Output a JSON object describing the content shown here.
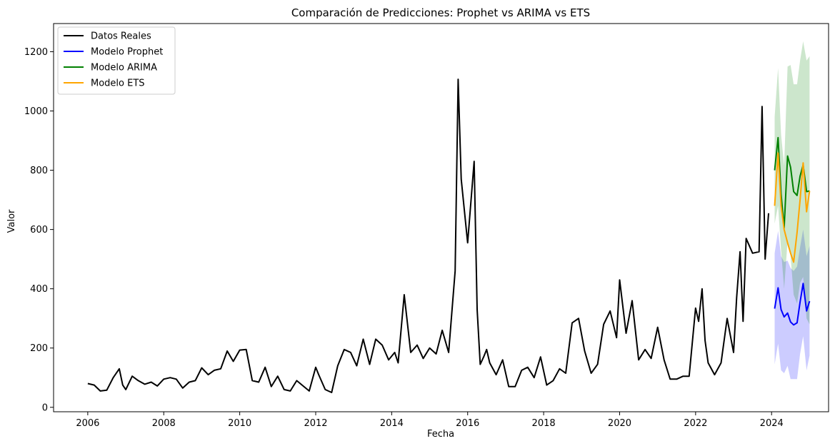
{
  "chart_data": {
    "type": "line",
    "title": "Comparación de Predicciones: Prophet vs ARIMA vs ETS",
    "xlabel": "Fecha",
    "ylabel": "Valor",
    "xlim": [
      2005.1,
      2025.5
    ],
    "ylim": [
      -15,
      1295
    ],
    "x_ticks": [
      2006,
      2008,
      2010,
      2012,
      2014,
      2016,
      2018,
      2020,
      2022,
      2024
    ],
    "x_tick_labels": [
      "2006",
      "2008",
      "2010",
      "2012",
      "2014",
      "2016",
      "2018",
      "2020",
      "2022",
      "2024"
    ],
    "y_ticks": [
      0,
      200,
      400,
      600,
      800,
      1000,
      1200
    ],
    "y_tick_labels": [
      "0",
      "200",
      "400",
      "600",
      "800",
      "1000",
      "1200"
    ],
    "grid": false,
    "legend_position": "top-left",
    "series": [
      {
        "name": "Datos Reales",
        "color": "#000000",
        "x": [
          2006.0,
          2006.17,
          2006.33,
          2006.5,
          2006.67,
          2006.83,
          2006.92,
          2007.0,
          2007.17,
          2007.33,
          2007.5,
          2007.67,
          2007.83,
          2008.0,
          2008.17,
          2008.33,
          2008.5,
          2008.67,
          2008.83,
          2009.0,
          2009.17,
          2009.33,
          2009.5,
          2009.67,
          2009.83,
          2010.0,
          2010.17,
          2010.33,
          2010.5,
          2010.67,
          2010.83,
          2011.0,
          2011.17,
          2011.33,
          2011.5,
          2011.67,
          2011.83,
          2012.0,
          2012.08,
          2012.25,
          2012.42,
          2012.58,
          2012.75,
          2012.92,
          2013.08,
          2013.25,
          2013.42,
          2013.58,
          2013.75,
          2013.92,
          2014.08,
          2014.17,
          2014.33,
          2014.5,
          2014.67,
          2014.83,
          2015.0,
          2015.17,
          2015.33,
          2015.5,
          2015.67,
          2015.75,
          2015.83,
          2016.0,
          2016.17,
          2016.25,
          2016.33,
          2016.42,
          2016.5,
          2016.58,
          2016.75,
          2016.92,
          2017.08,
          2017.25,
          2017.42,
          2017.58,
          2017.75,
          2017.92,
          2018.08,
          2018.25,
          2018.42,
          2018.58,
          2018.75,
          2018.92,
          2019.08,
          2019.25,
          2019.42,
          2019.58,
          2019.75,
          2019.92,
          2020.0,
          2020.17,
          2020.33,
          2020.5,
          2020.67,
          2020.83,
          2021.0,
          2021.17,
          2021.33,
          2021.5,
          2021.67,
          2021.83,
          2022.0,
          2022.08,
          2022.17,
          2022.25,
          2022.33,
          2022.5,
          2022.67,
          2022.83,
          2023.0,
          2023.08,
          2023.17,
          2023.25,
          2023.33,
          2023.5,
          2023.67,
          2023.75,
          2023.83,
          2023.92
        ],
        "values": [
          80,
          75,
          55,
          58,
          100,
          130,
          75,
          60,
          105,
          90,
          78,
          85,
          72,
          95,
          100,
          95,
          65,
          85,
          90,
          133,
          110,
          125,
          130,
          190,
          155,
          193,
          195,
          90,
          85,
          135,
          70,
          105,
          60,
          55,
          90,
          72,
          55,
          135,
          110,
          60,
          50,
          140,
          195,
          185,
          140,
          230,
          145,
          230,
          210,
          160,
          185,
          150,
          380,
          185,
          210,
          165,
          200,
          180,
          260,
          185,
          460,
          1107,
          770,
          555,
          830,
          330,
          145,
          170,
          195,
          150,
          110,
          160,
          70,
          70,
          125,
          135,
          100,
          170,
          75,
          90,
          130,
          115,
          285,
          300,
          190,
          115,
          145,
          280,
          325,
          235,
          430,
          250,
          360,
          160,
          195,
          165,
          270,
          160,
          95,
          95,
          105,
          105,
          335,
          290,
          400,
          225,
          150,
          110,
          150,
          300,
          185,
          370,
          525,
          290,
          570,
          520,
          525,
          1015,
          500,
          655
        ]
      },
      {
        "name": "Modelo Prophet",
        "color": "#0000ff",
        "x": [
          2024.08,
          2024.17,
          2024.25,
          2024.33,
          2024.42,
          2024.5,
          2024.58,
          2024.67,
          2024.75,
          2024.83,
          2024.92,
          2025.0
        ],
        "values": [
          333,
          403,
          330,
          305,
          318,
          288,
          278,
          285,
          355,
          418,
          325,
          358
        ],
        "band_lower": [
          145,
          215,
          125,
          115,
          140,
          95,
          95,
          95,
          180,
          240,
          125,
          175
        ],
        "band_upper": [
          520,
          595,
          510,
          490,
          495,
          470,
          460,
          475,
          540,
          600,
          510,
          545
        ]
      },
      {
        "name": "Modelo ARIMA",
        "color": "#008000",
        "x": [
          2024.08,
          2024.17,
          2024.25,
          2024.33,
          2024.42,
          2024.5,
          2024.58,
          2024.67,
          2024.75,
          2024.83,
          2024.92,
          2025.0
        ],
        "values": [
          800,
          910,
          720,
          605,
          848,
          810,
          728,
          715,
          780,
          818,
          728,
          730
        ],
        "band_lower": [
          620,
          680,
          530,
          400,
          560,
          510,
          380,
          350,
          420,
          440,
          300,
          280
        ],
        "band_upper": [
          980,
          1145,
          920,
          815,
          1150,
          1155,
          1090,
          1090,
          1170,
          1235,
          1170,
          1185
        ]
      },
      {
        "name": "Modelo ETS",
        "color": "#ffa500",
        "x": [
          2024.08,
          2024.17,
          2024.25,
          2024.33,
          2024.42,
          2024.5,
          2024.58,
          2024.67,
          2024.75,
          2024.83,
          2024.92,
          2025.0
        ],
        "values": [
          680,
          858,
          680,
          600,
          555,
          520,
          490,
          590,
          700,
          825,
          660,
          730
        ]
      }
    ]
  }
}
